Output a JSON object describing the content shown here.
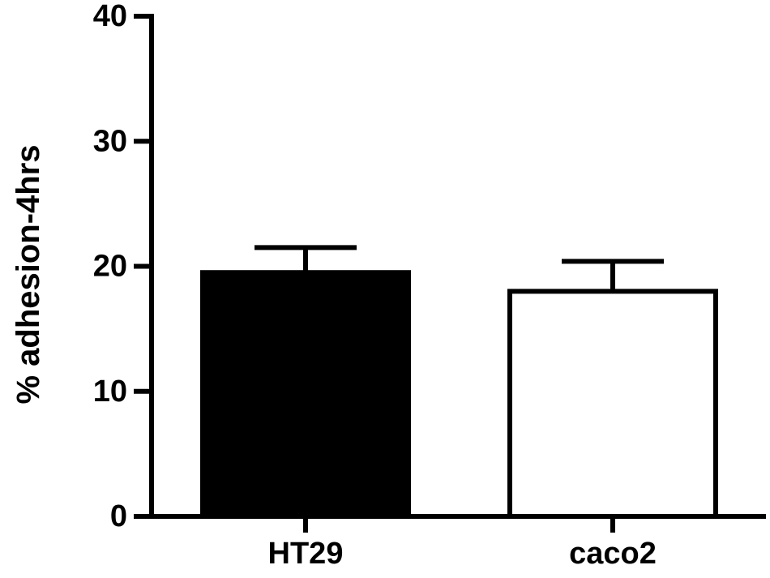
{
  "chart_data": {
    "type": "bar",
    "title": "",
    "xlabel": "",
    "ylabel": "% adhesion-4hrs",
    "ylim": [
      0,
      40
    ],
    "yticks": [
      0,
      10,
      20,
      30,
      40
    ],
    "categories": [
      "HT29",
      "caco2"
    ],
    "values": [
      19.5,
      18.0
    ],
    "errors": [
      2.0,
      2.4
    ],
    "bar_fills": [
      "#000000",
      "#ffffff"
    ],
    "bar_stroke": "#000000",
    "grid": false,
    "legend": "none"
  }
}
